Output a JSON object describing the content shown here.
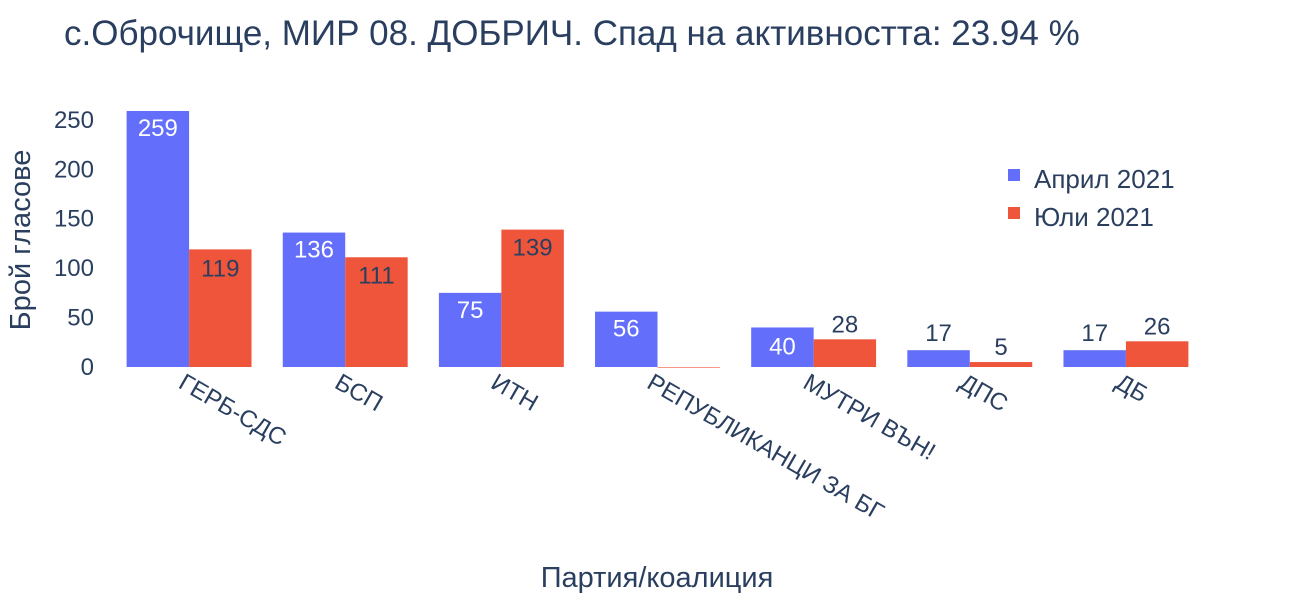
{
  "title": "с.Оброчище, МИР 08. ДОБРИЧ. Спад на активността: 23.94 %",
  "chart_data": {
    "type": "bar",
    "title": "с.Оброчище, МИР 08. ДОБРИЧ. Спад на активността: 23.94 %",
    "xlabel": "Партия/коалиция",
    "ylabel": "Брой гласове",
    "categories": [
      "ГЕРБ-СДС",
      "БСП",
      "ИТН",
      "РЕПУБЛИКАНЦИ ЗА БГ",
      "МУТРИ ВЪН!",
      "ДПС",
      "ДБ"
    ],
    "series": [
      {
        "name": "Април 2021",
        "color": "#636efa",
        "values": [
          259,
          136,
          75,
          56,
          40,
          17,
          17
        ],
        "labels": [
          "259",
          "136",
          "75",
          "56",
          "40",
          "17",
          "17"
        ]
      },
      {
        "name": "Юли 2021",
        "color": "#ef553b",
        "values": [
          119,
          111,
          139,
          0,
          28,
          5,
          26
        ],
        "labels": [
          "119",
          "111",
          "139",
          "",
          "28",
          "5",
          "26"
        ]
      }
    ],
    "yticks": [
      0,
      50,
      100,
      150,
      200,
      250
    ],
    "ylim": [
      0,
      260
    ],
    "grid": false,
    "legend_position": "top-right"
  }
}
